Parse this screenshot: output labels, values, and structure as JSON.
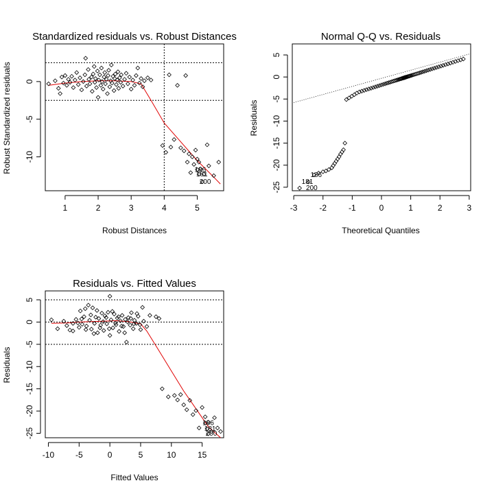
{
  "chart_data": [
    {
      "type": "scatter",
      "title": "Standardized residuals vs. Robust Distances",
      "xlabel": "Robust Distances",
      "ylabel": "Robust Standardized residuals",
      "xlim": [
        0.4,
        5.8
      ],
      "ylim": [
        -14.5,
        5.0
      ],
      "xticks": [
        1,
        2,
        3,
        4,
        5
      ],
      "yticks": [
        0,
        -5,
        -10
      ],
      "hlines": [
        2.5,
        -2.5
      ],
      "vlines": [
        4.0
      ],
      "points": [
        [
          0.5,
          -0.3
        ],
        [
          0.7,
          0.1
        ],
        [
          0.8,
          -0.9
        ],
        [
          0.85,
          -1.6
        ],
        [
          0.9,
          0.6
        ],
        [
          0.95,
          -0.2
        ],
        [
          1.0,
          0.8
        ],
        [
          1.05,
          -0.5
        ],
        [
          1.1,
          0.3
        ],
        [
          1.15,
          -0.1
        ],
        [
          1.2,
          0.7
        ],
        [
          1.25,
          -0.8
        ],
        [
          1.3,
          0.2
        ],
        [
          1.35,
          1.2
        ],
        [
          1.4,
          -0.4
        ],
        [
          1.45,
          0.5
        ],
        [
          1.5,
          -1.1
        ],
        [
          1.55,
          0.0
        ],
        [
          1.6,
          0.9
        ],
        [
          1.62,
          3.1
        ],
        [
          1.65,
          -0.6
        ],
        [
          1.7,
          1.6
        ],
        [
          1.72,
          0.3
        ],
        [
          1.75,
          -0.3
        ],
        [
          1.8,
          0.6
        ],
        [
          1.82,
          -1.3
        ],
        [
          1.85,
          1.0
        ],
        [
          1.88,
          2.0
        ],
        [
          1.9,
          -0.1
        ],
        [
          1.92,
          0.4
        ],
        [
          1.95,
          -0.8
        ],
        [
          1.98,
          1.4
        ],
        [
          2.0,
          -2.1
        ],
        [
          2.02,
          0.2
        ],
        [
          2.05,
          0.9
        ],
        [
          2.08,
          -0.5
        ],
        [
          2.1,
          1.8
        ],
        [
          2.12,
          0.0
        ],
        [
          2.15,
          -1.0
        ],
        [
          2.18,
          0.6
        ],
        [
          2.2,
          1.2
        ],
        [
          2.22,
          -0.3
        ],
        [
          2.25,
          0.3
        ],
        [
          2.28,
          -1.6
        ],
        [
          2.3,
          0.8
        ],
        [
          2.32,
          1.5
        ],
        [
          2.35,
          -0.7
        ],
        [
          2.38,
          0.1
        ],
        [
          2.4,
          2.2
        ],
        [
          2.42,
          -0.2
        ],
        [
          2.45,
          0.7
        ],
        [
          2.48,
          -1.2
        ],
        [
          2.5,
          0.4
        ],
        [
          2.52,
          1.0
        ],
        [
          2.55,
          -0.4
        ],
        [
          2.58,
          0.2
        ],
        [
          2.6,
          1.3
        ],
        [
          2.62,
          -0.9
        ],
        [
          2.65,
          0.5
        ],
        [
          2.68,
          -0.1
        ],
        [
          2.7,
          0.9
        ],
        [
          2.75,
          -0.6
        ],
        [
          2.8,
          0.3
        ],
        [
          2.85,
          1.1
        ],
        [
          2.9,
          -0.3
        ],
        [
          2.95,
          0.6
        ],
        [
          3.0,
          -1.0
        ],
        [
          3.05,
          0.2
        ],
        [
          3.1,
          -0.5
        ],
        [
          3.15,
          0.8
        ],
        [
          3.2,
          1.8
        ],
        [
          3.25,
          -0.2
        ],
        [
          3.3,
          0.4
        ],
        [
          3.35,
          -0.7
        ],
        [
          3.4,
          0.1
        ],
        [
          3.5,
          0.5
        ],
        [
          3.6,
          0.2
        ],
        [
          4.15,
          0.9
        ],
        [
          4.4,
          -0.5
        ],
        [
          4.65,
          0.8
        ],
        [
          3.95,
          -8.5
        ],
        [
          4.05,
          -9.4
        ],
        [
          4.2,
          -8.7
        ],
        [
          4.3,
          -7.7
        ],
        [
          4.5,
          -8.8
        ],
        [
          4.6,
          -9.2
        ],
        [
          4.7,
          -10.7
        ],
        [
          4.75,
          -9.6
        ],
        [
          4.8,
          -12.1
        ],
        [
          4.85,
          -10.0
        ],
        [
          4.9,
          -11.0
        ],
        [
          4.95,
          -9.1
        ],
        [
          5.0,
          -10.3
        ],
        [
          5.05,
          -10.7
        ],
        [
          5.1,
          -11.6
        ],
        [
          5.2,
          -12.3
        ],
        [
          5.3,
          -8.4
        ],
        [
          5.35,
          -11.2
        ],
        [
          5.5,
          -12.5
        ],
        [
          5.65,
          -10.7
        ],
        [
          5.0,
          -11.7
        ],
        [
          5.05,
          -12.3
        ],
        [
          5.15,
          -13.3
        ]
      ],
      "labels": [
        {
          "text": "186",
          "x": 5.0,
          "y": -11.7
        },
        {
          "text": "181",
          "x": 5.05,
          "y": -12.3
        },
        {
          "text": "200",
          "x": 5.15,
          "y": -13.3
        }
      ],
      "smooth": [
        [
          0.5,
          -0.5
        ],
        [
          1.0,
          -0.2
        ],
        [
          1.5,
          0.0
        ],
        [
          2.0,
          0.1
        ],
        [
          2.5,
          0.1
        ],
        [
          3.0,
          0.0
        ],
        [
          3.3,
          -0.3
        ],
        [
          3.6,
          -2.5
        ],
        [
          4.0,
          -5.5
        ],
        [
          4.5,
          -8.0
        ],
        [
          5.0,
          -10.5
        ],
        [
          5.5,
          -12.7
        ],
        [
          5.7,
          -13.6
        ]
      ]
    },
    {
      "type": "scatter",
      "title": "Normal Q-Q vs. Residuals",
      "xlabel": "Theoretical Quantiles",
      "ylabel": "Residuals",
      "xlim": [
        -3.05,
        3.05
      ],
      "ylim": [
        -25.8,
        7.5
      ],
      "xticks": [
        -3,
        -2,
        -1,
        0,
        1,
        2,
        3
      ],
      "yticks": [
        5,
        0,
        -5,
        -10,
        -15,
        -20,
        -25
      ],
      "refline": [
        [
          -3,
          -5.8
        ],
        [
          3,
          5.2
        ]
      ],
      "points_upper": {
        "q_start": -1.2,
        "q_end": 2.8,
        "r_start": -4.3,
        "r_end": 5.7,
        "n": 70
      },
      "points_lower": [
        [
          -2.8,
          -25.2
        ],
        [
          -2.5,
          -23.8
        ],
        [
          -2.3,
          -22.2
        ],
        [
          -2.15,
          -21.8
        ],
        [
          -2.0,
          -21.5
        ],
        [
          -1.9,
          -21.3
        ],
        [
          -1.8,
          -21.0
        ],
        [
          -1.7,
          -20.6
        ],
        [
          -1.65,
          -20.1
        ],
        [
          -1.6,
          -19.6
        ],
        [
          -1.55,
          -19.1
        ],
        [
          -1.5,
          -18.6
        ],
        [
          -1.45,
          -18.1
        ],
        [
          -1.4,
          -17.5
        ],
        [
          -1.35,
          -17.0
        ],
        [
          -1.3,
          -16.5
        ],
        [
          -1.25,
          -15.0
        ]
      ],
      "labels": [
        {
          "text": "186",
          "x": -2.5,
          "y": -22.2
        },
        {
          "text": "181",
          "x": -2.8,
          "y": -23.8
        },
        {
          "text": "200",
          "x": -2.65,
          "y": -25.2
        }
      ]
    },
    {
      "type": "scatter",
      "title": "Residuals vs. Fitted Values",
      "xlabel": "Fitted Values",
      "ylabel": "Residuals",
      "xlim": [
        -10.5,
        18.5
      ],
      "ylim": [
        -26.0,
        7.0
      ],
      "xticks": [
        -10,
        -5,
        0,
        5,
        10,
        15
      ],
      "yticks": [
        5,
        0,
        -5,
        -10,
        -15,
        -20,
        -25
      ],
      "hlines": [
        5,
        0,
        -5
      ],
      "points": [
        [
          -9.5,
          0.5
        ],
        [
          -8.5,
          -1.5
        ],
        [
          -7.5,
          0.2
        ],
        [
          -7,
          -0.8
        ],
        [
          -6.5,
          -1.8
        ],
        [
          -6,
          -0.3
        ],
        [
          -5.5,
          0.6
        ],
        [
          -5,
          -1.2
        ],
        [
          -4.8,
          2.5
        ],
        [
          -4.5,
          -0.5
        ],
        [
          -4.2,
          1.2
        ],
        [
          -4,
          3.0
        ],
        [
          -3.8,
          -0.9
        ],
        [
          -3.5,
          3.8
        ],
        [
          -3.3,
          0.4
        ],
        [
          -3,
          -1.6
        ],
        [
          -2.8,
          3.2
        ],
        [
          -2.5,
          -0.3
        ],
        [
          -2.3,
          1.1
        ],
        [
          -2,
          -2.4
        ],
        [
          -1.8,
          0.8
        ],
        [
          -1.5,
          -0.7
        ],
        [
          -1.3,
          2.0
        ],
        [
          -1,
          -1.9
        ],
        [
          -0.8,
          1.4
        ],
        [
          -0.5,
          -0.4
        ],
        [
          -0.3,
          2.2
        ],
        [
          0,
          -3.0
        ],
        [
          0,
          5.8
        ],
        [
          0.2,
          0.5
        ],
        [
          0.5,
          -1.3
        ],
        [
          0.7,
          1.8
        ],
        [
          1,
          -0.6
        ],
        [
          1.2,
          0.9
        ],
        [
          1.5,
          -2.1
        ],
        [
          1.7,
          0.3
        ],
        [
          2,
          1.5
        ],
        [
          2.2,
          -1.0
        ],
        [
          2.5,
          0.6
        ],
        [
          2.7,
          -4.5
        ],
        [
          3,
          1.0
        ],
        [
          3.3,
          -0.7
        ],
        [
          3.5,
          2.1
        ],
        [
          3.8,
          -1.5
        ],
        [
          4,
          0.4
        ],
        [
          4.3,
          -0.3
        ],
        [
          4.6,
          1.3
        ],
        [
          5,
          -1.7
        ],
        [
          5.3,
          3.3
        ],
        [
          5.5,
          0.2
        ],
        [
          6,
          -1.0
        ],
        [
          6.5,
          1.5
        ],
        [
          7.5,
          1.2
        ],
        [
          8,
          0.8
        ],
        [
          -6,
          -2.0
        ],
        [
          -5.2,
          -0.2
        ],
        [
          -4.6,
          0.7
        ],
        [
          -3.9,
          -1.7
        ],
        [
          -3.1,
          1.6
        ],
        [
          -2.6,
          -2.6
        ],
        [
          -2.1,
          2.6
        ],
        [
          -1.6,
          -1.3
        ],
        [
          -1.1,
          0.1
        ],
        [
          -0.6,
          1.0
        ],
        [
          -0.1,
          -1.5
        ],
        [
          0.4,
          2.4
        ],
        [
          0.9,
          -0.2
        ],
        [
          1.4,
          1.2
        ],
        [
          1.9,
          -0.9
        ],
        [
          2.4,
          -2.4
        ],
        [
          2.9,
          0.0
        ],
        [
          3.4,
          0.8
        ],
        [
          3.9,
          -0.4
        ],
        [
          4.4,
          1.9
        ],
        [
          4.9,
          -0.6
        ],
        [
          8.5,
          -15.0
        ],
        [
          9.5,
          -16.8
        ],
        [
          10.5,
          -16.5
        ],
        [
          11,
          -17.5
        ],
        [
          11.5,
          -16.3
        ],
        [
          12,
          -18.6
        ],
        [
          12.5,
          -19.7
        ],
        [
          13,
          -17.6
        ],
        [
          13.5,
          -20.8
        ],
        [
          14,
          -19.9
        ],
        [
          14.5,
          -23.8
        ],
        [
          15,
          -19.2
        ],
        [
          15.5,
          -21.3
        ],
        [
          16,
          -22.5
        ],
        [
          16.5,
          -24.6
        ],
        [
          17,
          -21.5
        ],
        [
          17.5,
          -23.8
        ],
        [
          18,
          -24.6
        ],
        [
          15.5,
          -22.7
        ],
        [
          15.8,
          -24.0
        ],
        [
          16.0,
          -25.1
        ]
      ],
      "labels": [
        {
          "text": "186",
          "x": 15.5,
          "y": -22.7
        },
        {
          "text": "181",
          "x": 15.8,
          "y": -24.0
        },
        {
          "text": "200",
          "x": 16.0,
          "y": -25.1
        }
      ],
      "smooth": [
        [
          -9.5,
          -0.3
        ],
        [
          -7,
          -0.2
        ],
        [
          -5,
          0.0
        ],
        [
          -3,
          0.1
        ],
        [
          -1,
          0.2
        ],
        [
          1,
          0.3
        ],
        [
          3,
          0.1
        ],
        [
          5,
          -0.4
        ],
        [
          6,
          -2.0
        ],
        [
          8,
          -6.5
        ],
        [
          10,
          -11.0
        ],
        [
          12,
          -15.5
        ],
        [
          14,
          -19.5
        ],
        [
          16,
          -23.5
        ],
        [
          18,
          -26.0
        ]
      ]
    }
  ]
}
